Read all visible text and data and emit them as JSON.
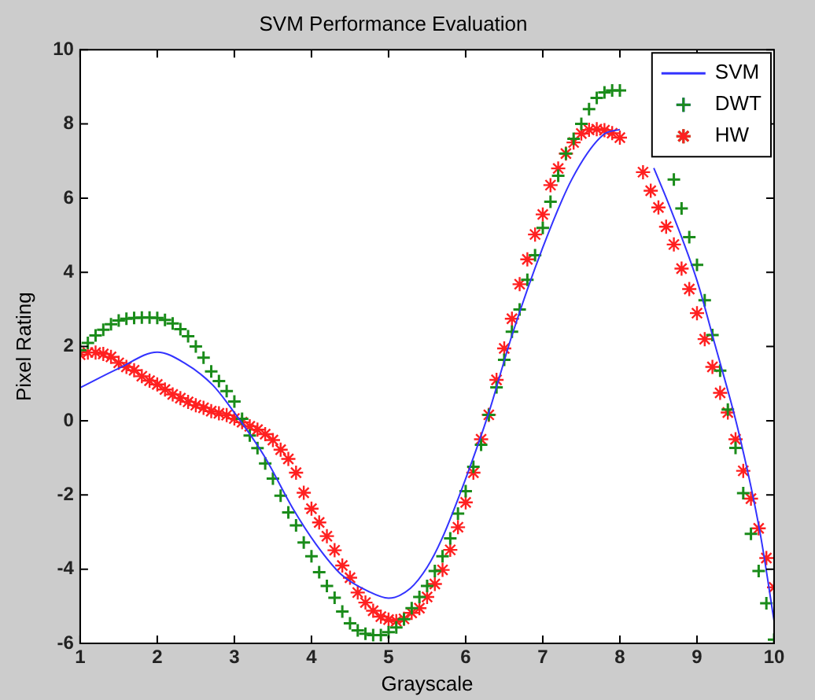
{
  "chart_data": {
    "type": "scatter",
    "title": "SVM Performance Evaluation",
    "xlabel": "Grayscale",
    "ylabel": "Pixel Rating",
    "xlim": [
      1,
      10
    ],
    "xticks": [
      1,
      2,
      3,
      4,
      5,
      6,
      7,
      8,
      9,
      10
    ],
    "ylim": [
      -6,
      10
    ],
    "yticks": [
      -6,
      -4,
      -2,
      0,
      2,
      4,
      6,
      8,
      10
    ],
    "grid": false,
    "legend": "top right",
    "series": [
      {
        "name": "SVM",
        "type": "line",
        "marker": "none",
        "color": "#3333ff",
        "x": [
          1,
          1.5,
          2,
          2.35,
          2.72,
          3,
          3.39,
          3.76,
          4.06,
          4.39,
          4.73,
          5,
          5.28,
          5.5,
          5.69,
          6,
          6.3,
          6.6,
          7,
          7.38,
          7.78,
          8,
          8.2,
          8.44,
          8.66,
          9,
          9.24,
          9.53,
          9.82,
          10
        ],
        "values": [
          0.89,
          1.41,
          1.85,
          1.56,
          0.96,
          0.22,
          -0.96,
          -2.37,
          -3.33,
          -4.15,
          -4.59,
          -4.78,
          -4.52,
          -3.95,
          -3.19,
          -1.56,
          0.22,
          2.3,
          4.67,
          6.52,
          7.7,
          7.85,
          null,
          6.81,
          5.7,
          3.78,
          2.0,
          -0.22,
          -3.04,
          -5.4
        ]
      },
      {
        "name": "DWT",
        "marker": "cross",
        "color": "#1a8c1a",
        "x": [
          1,
          1.1,
          1.2,
          1.3,
          1.4,
          1.5,
          1.6,
          1.7,
          1.8,
          1.9,
          2,
          2.1,
          2.2,
          2.3,
          2.4,
          2.5,
          2.6,
          2.7,
          2.8,
          2.9,
          3,
          3.1,
          3.2,
          3.3,
          3.4,
          3.5,
          3.6,
          3.7,
          3.8,
          3.9,
          4,
          4.1,
          4.2,
          4.3,
          4.4,
          4.5,
          4.6,
          4.7,
          4.8,
          4.9,
          5,
          5.1,
          5.2,
          5.3,
          5.4,
          5.5,
          5.6,
          5.7,
          5.8,
          5.9,
          6,
          6.1,
          6.2,
          6.3,
          6.4,
          6.5,
          6.6,
          6.7,
          6.8,
          6.9,
          7,
          7.1,
          7.2,
          7.3,
          7.4,
          7.5,
          7.6,
          7.7,
          7.8,
          7.9,
          8,
          8.1,
          8.2,
          8.3,
          8.4,
          8.5,
          8.6,
          8.7,
          8.8,
          8.9,
          9,
          9.1,
          9.2,
          9.3,
          9.4,
          9.5,
          9.6,
          9.7,
          9.8,
          9.9,
          10
        ],
        "values": [
          1.9,
          2.1,
          2.3,
          2.45,
          2.6,
          2.7,
          2.75,
          2.77,
          2.78,
          2.78,
          2.77,
          2.72,
          2.62,
          2.47,
          2.28,
          2.0,
          1.7,
          1.33,
          1.07,
          0.8,
          0.52,
          0.05,
          -0.4,
          -0.74,
          -1.15,
          -1.56,
          -2.02,
          -2.47,
          -2.82,
          -3.28,
          -3.65,
          -4.08,
          -4.45,
          -4.77,
          -5.14,
          -5.46,
          -5.65,
          -5.74,
          -5.78,
          -5.78,
          -5.7,
          -5.57,
          -5.35,
          -5.05,
          -4.75,
          -4.45,
          -4.05,
          -3.65,
          -3.17,
          -2.5,
          -1.9,
          -1.24,
          -0.65,
          0.16,
          0.9,
          1.64,
          2.4,
          3.0,
          3.8,
          4.46,
          5.2,
          5.9,
          6.6,
          7.2,
          7.6,
          8.0,
          8.4,
          8.7,
          8.85,
          8.9,
          8.9,
          null,
          null,
          null,
          null,
          null,
          null,
          6.5,
          5.72,
          4.95,
          4.2,
          3.25,
          2.31,
          1.35,
          0.3,
          -0.73,
          -1.95,
          -3.05,
          -4.05,
          -4.92,
          -5.9
        ]
      },
      {
        "name": "HW",
        "color": "#ff2020",
        "x": [
          1,
          1.1,
          1.2,
          1.3,
          1.4,
          1.5,
          1.6,
          1.7,
          1.8,
          1.9,
          2,
          2.1,
          2.2,
          2.3,
          2.4,
          2.5,
          2.6,
          2.7,
          2.8,
          2.9,
          3,
          3.1,
          3.2,
          3.3,
          3.4,
          3.5,
          3.6,
          3.7,
          3.8,
          3.9,
          4,
          4.1,
          4.2,
          4.3,
          4.4,
          4.5,
          4.6,
          4.7,
          4.8,
          4.9,
          5,
          5.1,
          5.2,
          5.3,
          5.4,
          5.5,
          5.6,
          5.7,
          5.8,
          5.9,
          6,
          6.1,
          6.2,
          6.3,
          6.4,
          6.5,
          6.6,
          6.7,
          6.8,
          6.9,
          7,
          7.1,
          7.2,
          7.3,
          7.4,
          7.5,
          7.6,
          7.7,
          7.8,
          7.9,
          8,
          8.1,
          8.2,
          8.3,
          8.4,
          8.5,
          8.6,
          8.7,
          8.8,
          8.9,
          9,
          9.1,
          9.2,
          9.3,
          9.4,
          9.5,
          9.6,
          9.7,
          9.8,
          9.9,
          10
        ],
        "values": [
          1.78,
          1.84,
          1.84,
          1.8,
          1.72,
          1.56,
          1.45,
          1.36,
          1.2,
          1.08,
          0.98,
          0.84,
          0.71,
          0.61,
          0.51,
          0.42,
          0.35,
          0.26,
          0.2,
          0.15,
          0.06,
          -0.04,
          -0.15,
          -0.24,
          -0.36,
          -0.52,
          -0.78,
          -1.03,
          -1.4,
          -1.94,
          -2.37,
          -2.74,
          -3.11,
          -3.49,
          -3.9,
          -4.23,
          -4.63,
          -4.9,
          -5.12,
          -5.28,
          -5.36,
          -5.4,
          -5.34,
          -5.18,
          -5.05,
          -4.75,
          -4.4,
          -4.02,
          -3.48,
          -2.87,
          -2.2,
          -1.4,
          -0.5,
          0.16,
          1.1,
          1.95,
          2.75,
          3.68,
          4.35,
          5.02,
          5.56,
          6.35,
          6.8,
          7.2,
          7.5,
          7.74,
          7.84,
          7.86,
          7.83,
          7.75,
          7.63,
          null,
          null,
          6.7,
          6.2,
          5.75,
          5.23,
          4.75,
          4.1,
          3.55,
          2.9,
          2.2,
          1.45,
          0.75,
          0.22,
          -0.5,
          -1.35,
          -2.1,
          -2.9,
          -3.7,
          -4.49
        ]
      }
    ]
  }
}
